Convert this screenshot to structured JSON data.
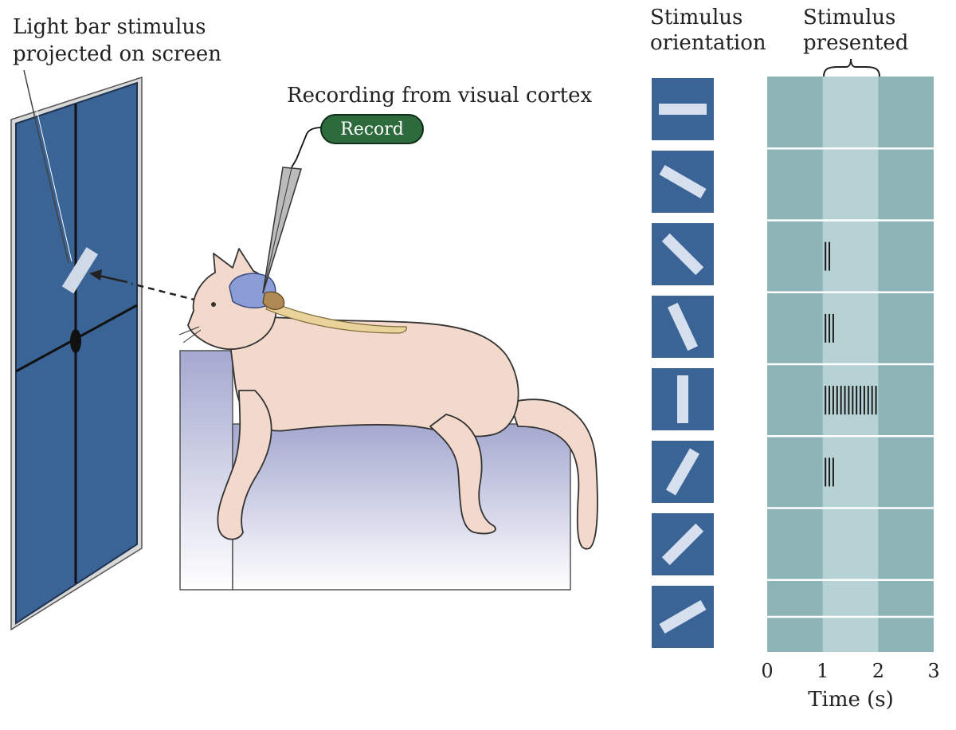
{
  "labels": {
    "stimulus_line1": "Light bar stimulus",
    "stimulus_line2": "projected on screen",
    "recording": "Recording from visual cortex",
    "record_button": "Record",
    "orientation_line1": "Stimulus",
    "orientation_line2": "orientation",
    "presented_line1": "Stimulus",
    "presented_line2": "presented",
    "xlabel": "Time (s)"
  },
  "colors": {
    "screen_blue": "#3a6496",
    "panel_teal": "#8db5b8",
    "panel_highlight": "#b7d2d4",
    "record_green": "#2d6a3c",
    "cat_fill": "#f2d9cc",
    "brain_fill": "#8a9dd6",
    "table_top": "#a9acd0",
    "spike_color": "#1a1a1a"
  },
  "icons": {
    "electrode": "electrode-icon",
    "cat": "cat-illustration",
    "screen": "projection-screen",
    "light_bar": "light-bar-icon"
  },
  "chart_data": {
    "type": "raster",
    "xlabel": "Time (s)",
    "xlim": [
      0,
      3
    ],
    "x_ticks": [
      0,
      1,
      2,
      3
    ],
    "stimulus_window": [
      1,
      2
    ],
    "trials": [
      {
        "orientation_deg": 0,
        "spikes": []
      },
      {
        "orientation_deg": -30,
        "spikes": []
      },
      {
        "orientation_deg": -45,
        "spikes": [
          1.05,
          1.12
        ]
      },
      {
        "orientation_deg": -65,
        "spikes": [
          1.05,
          1.12,
          1.19
        ]
      },
      {
        "orientation_deg": 90,
        "spikes": [
          1.05,
          1.12,
          1.19,
          1.26,
          1.33,
          1.4,
          1.47,
          1.54,
          1.61,
          1.68,
          1.75,
          1.82,
          1.89,
          1.96
        ]
      },
      {
        "orientation_deg": 60,
        "spikes": [
          1.05,
          1.12,
          1.19
        ]
      },
      {
        "orientation_deg": 45,
        "spikes": []
      },
      {
        "orientation_deg": 30,
        "spikes": []
      }
    ]
  }
}
